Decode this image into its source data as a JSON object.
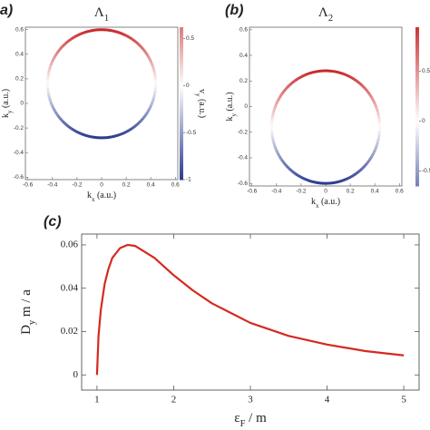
{
  "chart_data": [
    {
      "type": "circle",
      "panel": "a)",
      "title": {
        "main": "Λ",
        "sub": "1"
      },
      "center": [
        0,
        0.16
      ],
      "radius": 0.44,
      "xlim": [
        -0.62,
        0.62
      ],
      "ylim": [
        -0.62,
        0.62
      ],
      "xticks": [
        -0.6,
        -0.4,
        -0.2,
        0,
        0.2,
        0.4,
        0.6
      ],
      "yticks": [
        -0.6,
        -0.4,
        -0.2,
        0,
        0.2,
        0.4,
        0.6
      ],
      "xlabel": {
        "main": "k",
        "sub": "x",
        "unit": " (a.u.)"
      },
      "ylabel": {
        "main": "k",
        "sub": "y",
        "unit": " (a.u.)"
      },
      "clim": [
        -1,
        0.62
      ],
      "cticks": [
        0.5,
        0,
        -0.5,
        -1
      ],
      "clabel": {
        "main": "v",
        "sub": "y",
        "unit": " (a.u.)"
      },
      "colormap": {
        "low": "#2a3a8f",
        "mid": "#ffffff",
        "high": "#c8282a"
      }
    },
    {
      "type": "circle",
      "panel": "(b)",
      "title": {
        "main": "Λ",
        "sub": "2"
      },
      "center": [
        0,
        -0.16
      ],
      "radius": 0.44,
      "xlim": [
        -0.62,
        0.62
      ],
      "ylim": [
        -0.62,
        0.62
      ],
      "xticks": [
        -0.6,
        -0.4,
        -0.2,
        0,
        0.2,
        0.4,
        0.6
      ],
      "yticks": [
        -0.6,
        -0.4,
        -0.2,
        0,
        0.2,
        0.4,
        0.6
      ],
      "xlabel": {
        "main": "k",
        "sub": "x",
        "unit": " (a.u.)"
      },
      "ylabel": {
        "main": "k",
        "sub": "y",
        "unit": " (a.u.)"
      },
      "clim": [
        -0.65,
        0.94
      ],
      "cticks": [
        0.5,
        0,
        -0.5
      ],
      "clabel": {
        "main": "v",
        "sub": "y",
        "unit": " (a.u.)"
      },
      "colormap": {
        "low": "#2a3a8f",
        "mid": "#ffffff",
        "high": "#c8282a"
      }
    },
    {
      "type": "line",
      "panel": "(c)",
      "color": "#d42a20",
      "x": [
        1,
        1.02,
        1.05,
        1.1,
        1.15,
        1.2,
        1.3,
        1.4,
        1.5,
        1.75,
        2,
        2.25,
        2.5,
        3,
        3.5,
        4,
        4.5,
        5
      ],
      "y": [
        0,
        0.018,
        0.03,
        0.042,
        0.049,
        0.054,
        0.0585,
        0.06,
        0.0595,
        0.054,
        0.046,
        0.039,
        0.033,
        0.024,
        0.018,
        0.014,
        0.011,
        0.009
      ],
      "xlim": [
        0.8,
        5.2
      ],
      "ylim": [
        -0.007,
        0.065
      ],
      "xticks": [
        1,
        2,
        3,
        4,
        5
      ],
      "yticks": [
        0,
        0.02,
        0.04,
        0.06
      ],
      "xlabel": {
        "main": "ε",
        "sub": "F",
        "unit": " / m"
      },
      "ylabel": {
        "main": "D",
        "sub": "y",
        "unit": "  m / a"
      }
    }
  ]
}
